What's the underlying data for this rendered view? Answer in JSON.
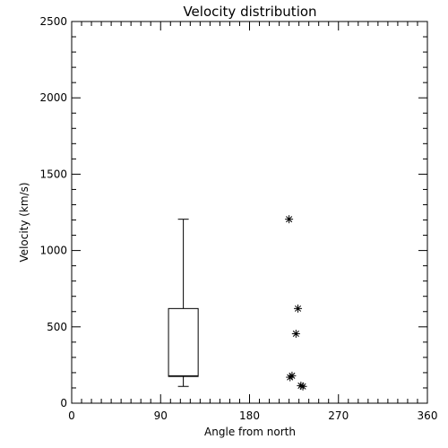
{
  "chart_data": {
    "type": "box+scatter",
    "title": "Velocity distribution",
    "xlabel": "Angle from north",
    "ylabel": "Velocity (km/s)",
    "xlim": [
      0,
      360
    ],
    "ylim": [
      0,
      2500
    ],
    "xticks": [
      0,
      90,
      180,
      270,
      360
    ],
    "yticks": [
      0,
      500,
      1000,
      1500,
      2000,
      2500
    ],
    "x_minor_step": 10,
    "y_minor_step": 100,
    "grid": false,
    "box": {
      "x": 113,
      "width_data": 30,
      "whisker_low": 110,
      "q1": 175,
      "median": 180,
      "q3": 620,
      "whisker_high": 1205
    },
    "points": [
      {
        "x": 220,
        "y": 1205
      },
      {
        "x": 229,
        "y": 620
      },
      {
        "x": 227,
        "y": 455
      },
      {
        "x": 223,
        "y": 180
      },
      {
        "x": 221,
        "y": 170
      },
      {
        "x": 232,
        "y": 115
      },
      {
        "x": 234,
        "y": 110
      }
    ],
    "marker": "asterisk"
  }
}
